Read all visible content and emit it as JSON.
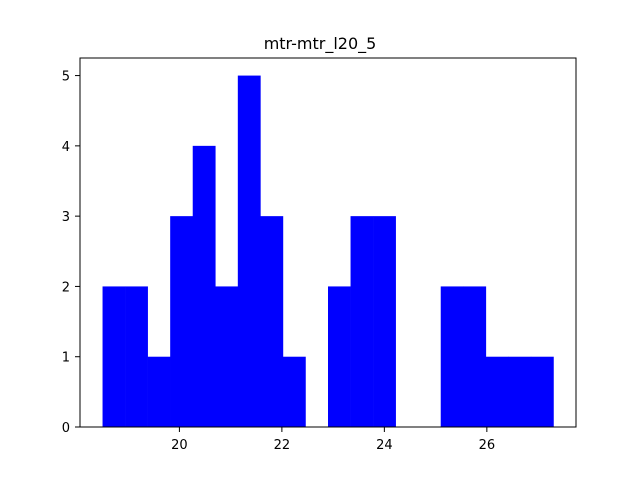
{
  "chart_data": {
    "type": "bar",
    "title": "mtr-mtr_l20_5",
    "xlabel": "",
    "ylabel": "",
    "bar_color": "#0000ff",
    "bins": [
      {
        "x0": 18.5,
        "x1": 18.94,
        "count": 2
      },
      {
        "x0": 18.94,
        "x1": 19.38,
        "count": 2
      },
      {
        "x0": 19.38,
        "x1": 19.82,
        "count": 1
      },
      {
        "x0": 19.82,
        "x1": 20.26,
        "count": 3
      },
      {
        "x0": 20.26,
        "x1": 20.7,
        "count": 4
      },
      {
        "x0": 20.7,
        "x1": 21.14,
        "count": 2
      },
      {
        "x0": 21.14,
        "x1": 21.58,
        "count": 5
      },
      {
        "x0": 21.58,
        "x1": 22.02,
        "count": 3
      },
      {
        "x0": 22.02,
        "x1": 22.46,
        "count": 1
      },
      {
        "x0": 22.46,
        "x1": 22.9,
        "count": 0
      },
      {
        "x0": 22.9,
        "x1": 23.34,
        "count": 2
      },
      {
        "x0": 23.34,
        "x1": 23.78,
        "count": 3
      },
      {
        "x0": 23.78,
        "x1": 24.22,
        "count": 3
      },
      {
        "x0": 24.22,
        "x1": 24.66,
        "count": 0
      },
      {
        "x0": 24.66,
        "x1": 25.1,
        "count": 0
      },
      {
        "x0": 25.1,
        "x1": 25.54,
        "count": 2
      },
      {
        "x0": 25.54,
        "x1": 25.98,
        "count": 2
      },
      {
        "x0": 25.98,
        "x1": 26.42,
        "count": 1
      },
      {
        "x0": 26.42,
        "x1": 26.86,
        "count": 1
      },
      {
        "x0": 26.86,
        "x1": 27.3,
        "count": 1
      }
    ],
    "xlim": [
      18.06,
      27.74
    ],
    "ylim": [
      0,
      5.25
    ],
    "xticks": [
      20,
      22,
      24,
      26
    ],
    "xtick_labels": [
      "20",
      "22",
      "24",
      "26"
    ],
    "yticks": [
      0,
      1,
      2,
      3,
      4,
      5
    ],
    "ytick_labels": [
      "0",
      "1",
      "2",
      "3",
      "4",
      "5"
    ],
    "grid": false,
    "legend": "none"
  }
}
